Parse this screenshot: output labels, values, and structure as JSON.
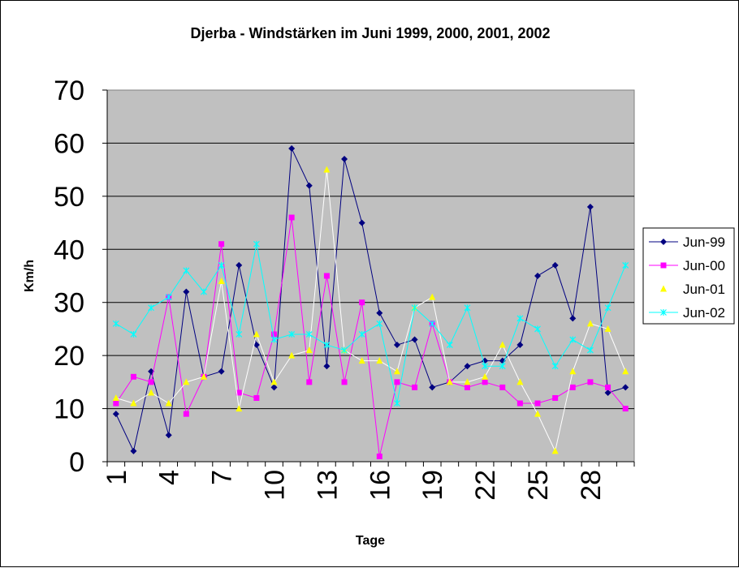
{
  "chart_data": {
    "type": "line",
    "title": "Djerba - Windstärken im Juni 1999, 2000, 2001, 2002",
    "xlabel": "Tage",
    "ylabel": "Km/h",
    "ylim": [
      0,
      70
    ],
    "yticks": [
      0,
      10,
      20,
      30,
      40,
      50,
      60,
      70
    ],
    "xlim": [
      1,
      30
    ],
    "xticks": [
      1,
      4,
      7,
      10,
      13,
      16,
      19,
      22,
      25,
      28
    ],
    "grid": "horizontal",
    "plot_background": "#c0c0c0",
    "legend_position": "right",
    "series": [
      {
        "name": "Jun-99",
        "color": "#000080",
        "marker": "diamond",
        "values": [
          9,
          2,
          17,
          5,
          32,
          16,
          17,
          37,
          22,
          14,
          59,
          52,
          18,
          57,
          45,
          28,
          22,
          23,
          14,
          15,
          18,
          19,
          19,
          22,
          35,
          37,
          27,
          48,
          13,
          14
        ]
      },
      {
        "name": "Jun-00",
        "color": "#ff00ff",
        "marker": "square",
        "values": [
          11,
          16,
          15,
          31,
          9,
          16,
          41,
          13,
          12,
          24,
          46,
          15,
          35,
          15,
          30,
          1,
          15,
          14,
          26,
          15,
          14,
          15,
          14,
          11,
          11,
          12,
          14,
          15,
          14,
          10
        ]
      },
      {
        "name": "Jun-01",
        "color": "#ffff00",
        "marker": "triangle",
        "values": [
          12,
          11,
          13,
          11,
          15,
          16,
          34,
          10,
          24,
          15,
          20,
          21,
          55,
          21,
          19,
          19,
          17,
          29,
          31,
          15,
          15,
          16,
          22,
          15,
          9,
          2,
          17,
          26,
          25,
          17
        ]
      },
      {
        "name": "Jun-02",
        "color": "#00ffff",
        "marker": "x",
        "values": [
          26,
          24,
          29,
          31,
          36,
          32,
          37,
          24,
          41,
          23,
          24,
          24,
          22,
          21,
          24,
          26,
          11,
          29,
          26,
          22,
          29,
          18,
          18,
          27,
          25,
          18,
          23,
          21,
          29,
          37
        ]
      }
    ]
  }
}
